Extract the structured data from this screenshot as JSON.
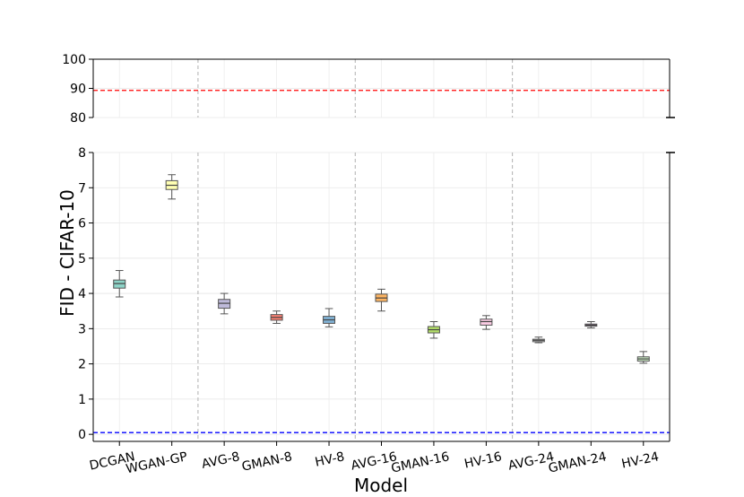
{
  "chart_data": {
    "type": "box",
    "title": "",
    "xlabel": "Model",
    "ylabel": "FID - CIFAR-10",
    "categories": [
      "DCGAN",
      "WGAN-GP",
      "AVG-8",
      "GMAN-8",
      "HV-8",
      "AVG-16",
      "GMAN-16",
      "HV-16",
      "AVG-24",
      "GMAN-24",
      "HV-24"
    ],
    "boxes": [
      {
        "category": "DCGAN",
        "min": 3.9,
        "q1": 4.15,
        "median": 4.28,
        "q3": 4.38,
        "max": 4.65,
        "color": "#8dd3c7"
      },
      {
        "category": "WGAN-GP",
        "min": 6.68,
        "q1": 6.95,
        "median": 7.07,
        "q3": 7.2,
        "max": 7.37,
        "color": "#ffffb3"
      },
      {
        "category": "AVG-8",
        "min": 3.42,
        "q1": 3.58,
        "median": 3.72,
        "q3": 3.83,
        "max": 4.0,
        "color": "#bebada"
      },
      {
        "category": "GMAN-8",
        "min": 3.15,
        "q1": 3.24,
        "median": 3.32,
        "q3": 3.4,
        "max": 3.5,
        "color": "#fb8072"
      },
      {
        "category": "HV-8",
        "min": 3.05,
        "q1": 3.15,
        "median": 3.25,
        "q3": 3.35,
        "max": 3.57,
        "color": "#80b1d3"
      },
      {
        "category": "AVG-16",
        "min": 3.5,
        "q1": 3.77,
        "median": 3.87,
        "q3": 3.98,
        "max": 4.12,
        "color": "#fdb462"
      },
      {
        "category": "GMAN-16",
        "min": 2.73,
        "q1": 2.88,
        "median": 2.97,
        "q3": 3.06,
        "max": 3.2,
        "color": "#b3de69"
      },
      {
        "category": "HV-16",
        "min": 2.98,
        "q1": 3.1,
        "median": 3.2,
        "q3": 3.27,
        "max": 3.37,
        "color": "#fccde5"
      },
      {
        "category": "AVG-24",
        "min": 2.6,
        "q1": 2.63,
        "median": 2.67,
        "q3": 2.7,
        "max": 2.76,
        "color": "#d9d9d9"
      },
      {
        "category": "GMAN-24",
        "min": 3.02,
        "q1": 3.07,
        "median": 3.1,
        "q3": 3.13,
        "max": 3.2,
        "color": "#bc80bd"
      },
      {
        "category": "HV-24",
        "min": 2.02,
        "q1": 2.08,
        "median": 2.14,
        "q3": 2.2,
        "max": 2.35,
        "color": "#ccebc5"
      }
    ],
    "reference_lines": [
      {
        "value": 89.3,
        "color": "#ff0000",
        "style": "dashed"
      },
      {
        "value": 0.05,
        "color": "#0000ff",
        "style": "dashed"
      }
    ],
    "group_separators_after": [
      "WGAN-GP",
      "HV-8",
      "HV-16"
    ],
    "axes": [
      {
        "panel": "top",
        "ylim": [
          80,
          100
        ],
        "yticks": [
          "80",
          "90",
          "100"
        ]
      },
      {
        "panel": "bottom",
        "ylim": [
          -0.2,
          8
        ],
        "yticks": [
          "0",
          "1",
          "2",
          "3",
          "4",
          "5",
          "6",
          "7",
          "8"
        ]
      }
    ],
    "grid": true,
    "broken_axis": true,
    "xtick_rotation": "slanted"
  }
}
